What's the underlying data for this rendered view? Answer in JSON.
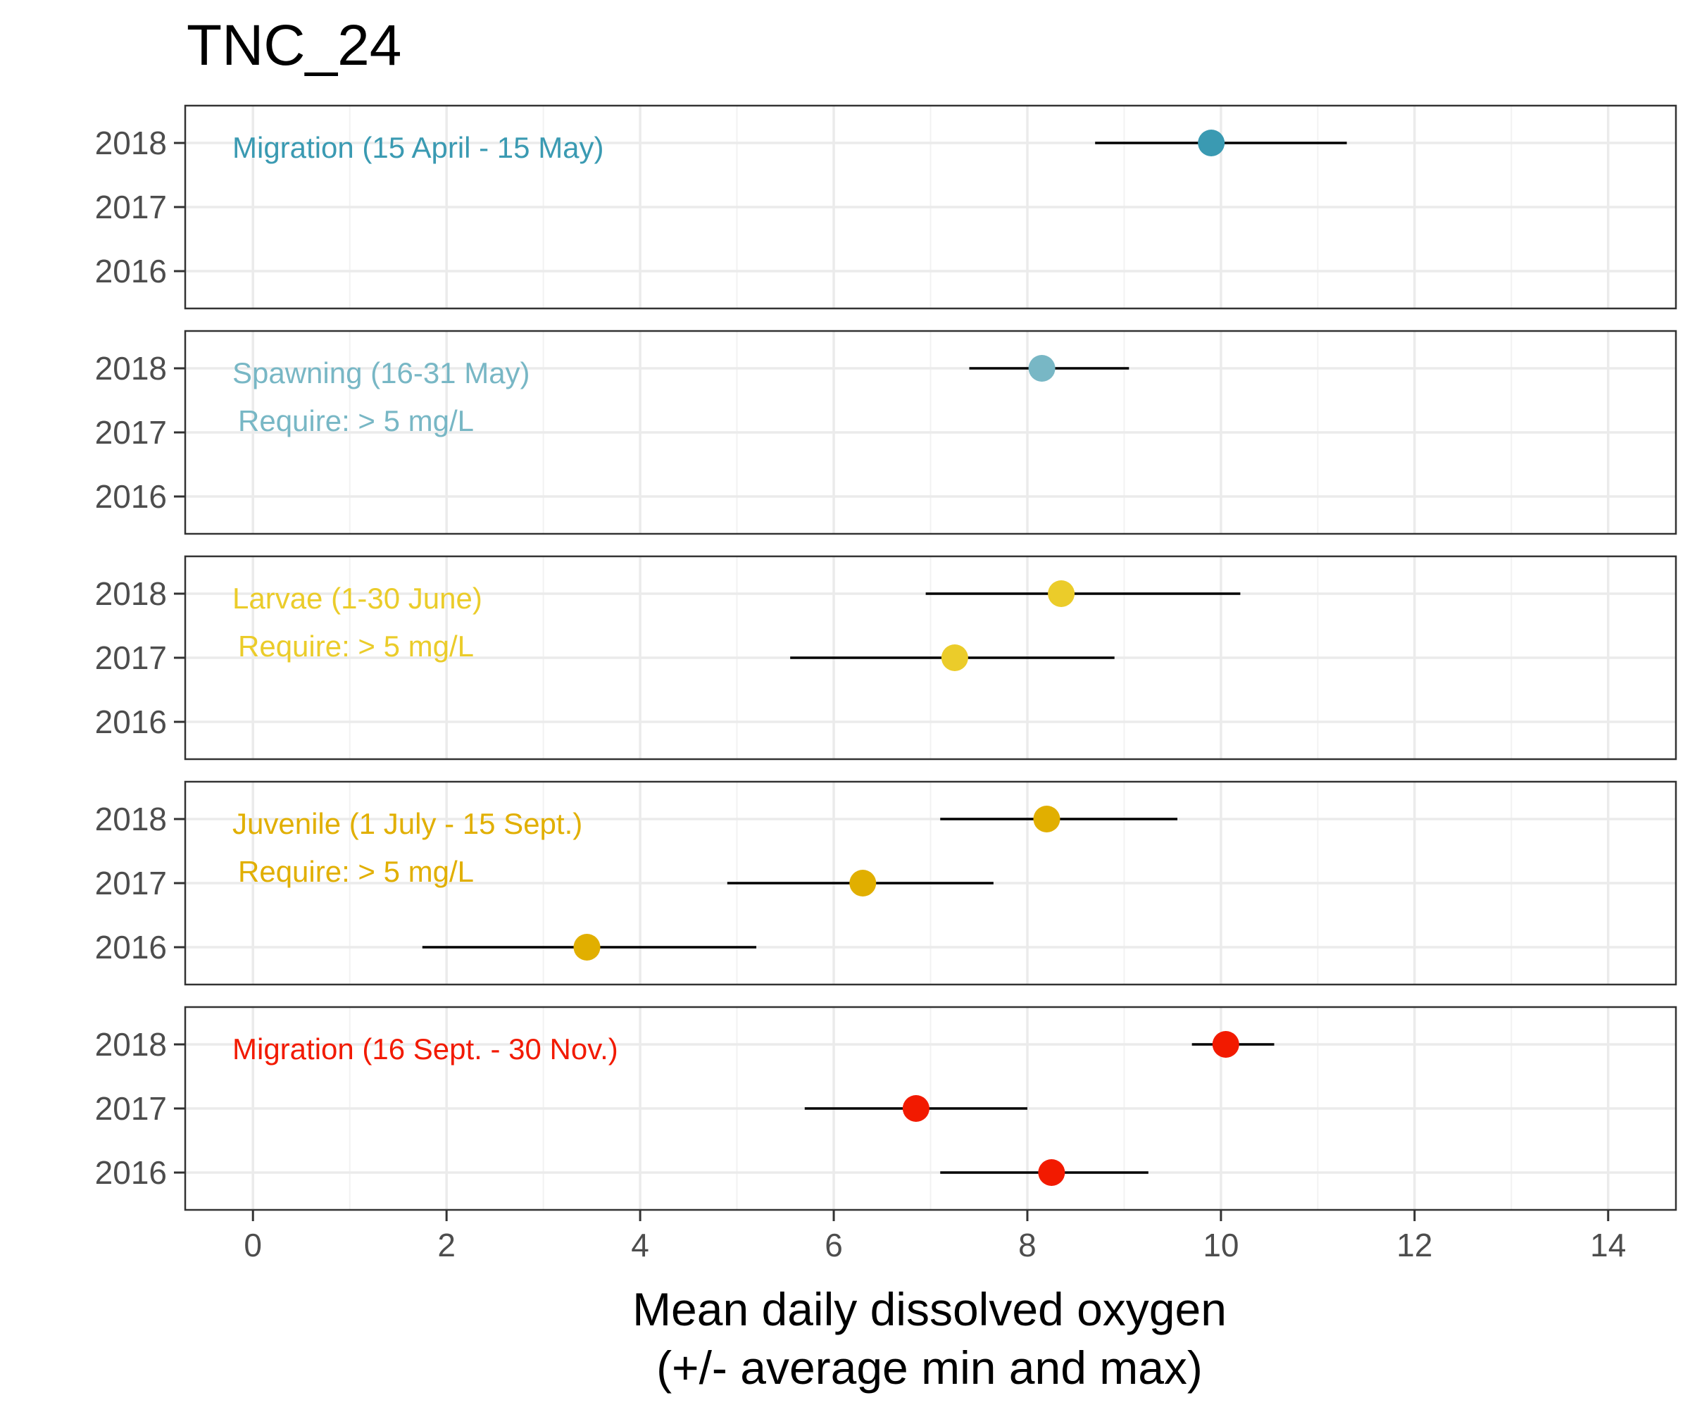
{
  "chart_data": {
    "type": "scatter",
    "title": "TNC_24",
    "xlabel": [
      "Mean daily dissolved oxygen",
      "(+/- average min and max)"
    ],
    "xlim": [
      -0.7,
      14.7
    ],
    "xticks": [
      0,
      2,
      4,
      6,
      8,
      10,
      12,
      14
    ],
    "y_categories": [
      "2018",
      "2017",
      "2016"
    ],
    "grid": true,
    "error_bar_color": "#000000",
    "panels": [
      {
        "label": "Migration (15 April - 15 May)",
        "note": "",
        "color": "#3A9AB2",
        "points": [
          {
            "year": "2018",
            "mean": 9.9,
            "min": 8.7,
            "max": 11.3
          }
        ]
      },
      {
        "label": "Spawning (16-31 May)",
        "note": "Require: > 5 mg/L",
        "color": "#78B7C5",
        "points": [
          {
            "year": "2018",
            "mean": 8.15,
            "min": 7.4,
            "max": 9.05
          }
        ]
      },
      {
        "label": "Larvae (1-30 June)",
        "note": "Require: > 5 mg/L",
        "color": "#EBCC2A",
        "points": [
          {
            "year": "2018",
            "mean": 8.35,
            "min": 6.95,
            "max": 10.2
          },
          {
            "year": "2017",
            "mean": 7.25,
            "min": 5.55,
            "max": 8.9
          }
        ]
      },
      {
        "label": "Juvenile (1 July - 15 Sept.)",
        "note": "Require: > 5 mg/L",
        "color": "#E1AF00",
        "points": [
          {
            "year": "2018",
            "mean": 8.2,
            "min": 7.1,
            "max": 9.55
          },
          {
            "year": "2017",
            "mean": 6.3,
            "min": 4.9,
            "max": 7.65
          },
          {
            "year": "2016",
            "mean": 3.45,
            "min": 1.75,
            "max": 5.2
          }
        ]
      },
      {
        "label": "Migration (16 Sept. - 30 Nov.)",
        "note": "",
        "color": "#F21A00",
        "points": [
          {
            "year": "2018",
            "mean": 10.05,
            "min": 9.7,
            "max": 10.55
          },
          {
            "year": "2017",
            "mean": 6.85,
            "min": 5.7,
            "max": 8.0
          },
          {
            "year": "2016",
            "mean": 8.25,
            "min": 7.1,
            "max": 9.25
          }
        ]
      }
    ]
  }
}
